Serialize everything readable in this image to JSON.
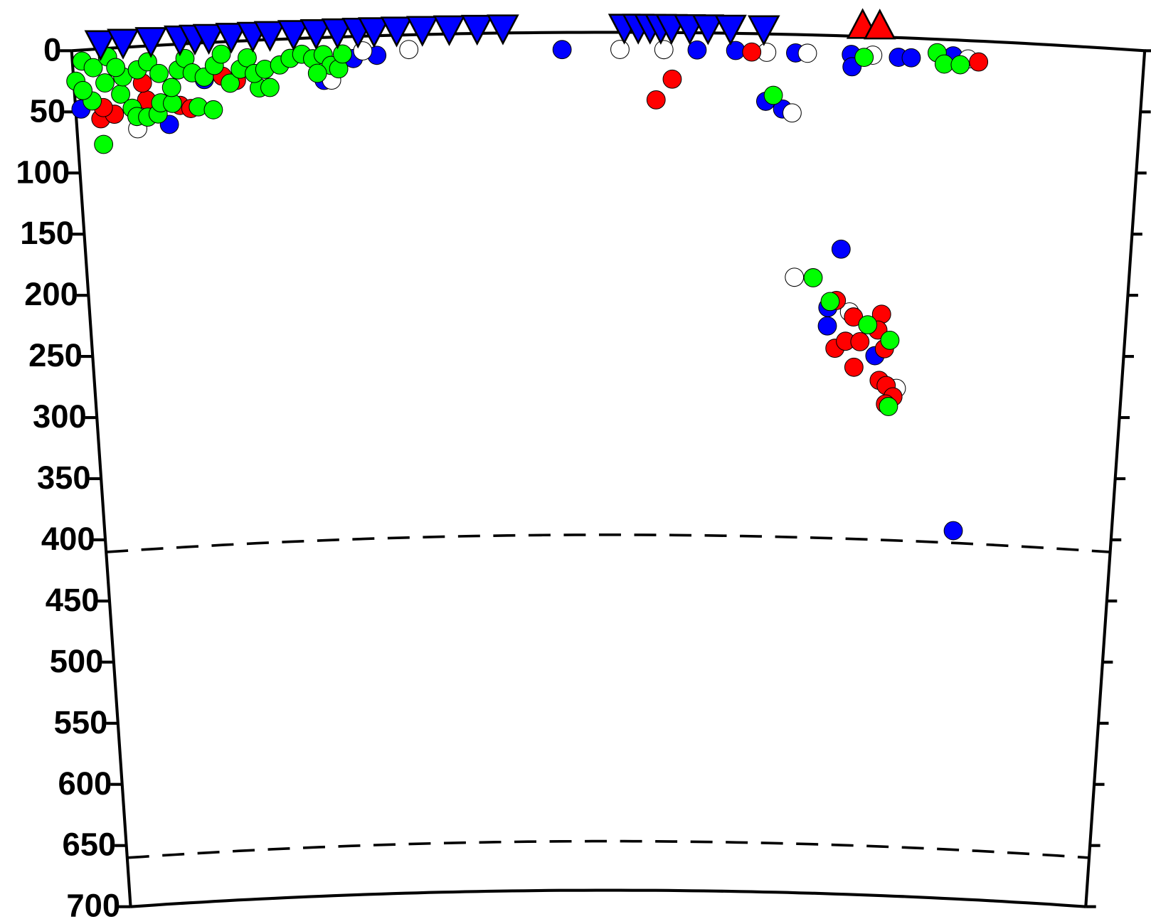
{
  "chart_data": {
    "type": "scatter",
    "y_inverted": true,
    "xlim": [
      0,
      100
    ],
    "ylim": [
      0,
      700
    ],
    "yticks": [
      0,
      50,
      100,
      150,
      200,
      250,
      300,
      350,
      400,
      450,
      500,
      550,
      600,
      650,
      700
    ],
    "ref_lines": [
      410,
      660
    ],
    "series": [
      {
        "color": "#0000ff",
        "x": [
          0.5,
          8.7,
          12.2,
          23.4,
          26.2,
          28.4,
          45.7,
          58.3,
          61.9,
          64.8,
          66.4,
          67.5,
          72.7,
          72.8,
          77.1,
          78.3,
          82.2,
          72.3,
          71.2,
          71.2,
          75.9,
          84.3
        ],
        "values": [
          48,
          65,
          30,
          35,
          18,
          16,
          14,
          14,
          14,
          55,
          61,
          15,
          15,
          25,
          16,
          16,
          13,
          174,
          237,
          222,
          260,
          400
        ]
      },
      {
        "color": "#ffffff",
        "x": [
          5.7,
          24.1,
          27.1,
          31.4,
          51.1,
          55.2,
          64.8,
          68.6,
          67.9,
          73.3,
          78.1,
          67.3,
          74.7,
          83.6
        ],
        "values": [
          67,
          35,
          12,
          12,
          14,
          14,
          15,
          15,
          198,
          225,
          286,
          64,
          15,
          15
        ]
      },
      {
        "color": "#ff0000",
        "x": [
          2.3,
          3.6,
          2.6,
          6.7,
          9.8,
          10.8,
          15.2,
          6.4,
          13.9,
          54.5,
          56.0,
          63.4,
          84.6,
          72.0,
          73.0,
          73.7,
          74.4,
          73.9,
          76.4,
          76.8,
          76.4,
          77.1,
          77.8,
          77.1,
          72.0,
          76.1
        ],
        "values": [
          57,
          54,
          48,
          44,
          50,
          53,
          32,
          30,
          28,
          55,
          38,
          15,
          17,
          255,
          249,
          229,
          249,
          270,
          226,
          254,
          280,
          284,
          293,
          299,
          216,
          239
        ]
      },
      {
        "color": "#00ff00",
        "x": [
          0.9,
          0.2,
          1.6,
          2.4,
          0.8,
          1.9,
          3.3,
          4.3,
          5.3,
          5.7,
          6.7,
          7.7,
          8.0,
          9.1,
          4.6,
          6.0,
          7.0,
          8.0,
          9.1,
          9.8,
          10.5,
          11.5,
          12.9,
          11.1,
          12.2,
          13.2,
          13.9,
          14.6,
          15.6,
          16.3,
          17.3,
          18.3,
          16.9,
          17.9,
          19.3,
          20.3,
          21.4,
          22.4,
          23.4,
          24.1,
          24.8,
          22.8,
          25.2,
          2.9,
          4.0,
          65.5,
          69.7,
          71.4,
          75.1,
          77.3,
          77.4,
          73.9,
          80.7,
          81.4,
          82.9
        ],
        "values": [
          9,
          25,
          42,
          78,
          33,
          15,
          7,
          38,
          50,
          57,
          58,
          56,
          47,
          48,
          24,
          19,
          13,
          23,
          35,
          21,
          12,
          52,
          55,
          24,
          28,
          19,
          10,
          34,
          23,
          14,
          39,
          39,
          27,
          24,
          21,
          16,
          13,
          17,
          14,
          23,
          26,
          29,
          14,
          28,
          16,
          50,
          198,
          217,
          235,
          247,
          301,
          17,
          11,
          20,
          20
        ]
      }
    ],
    "surface_markers": [
      {
        "marker": "triangle-down",
        "color": "#0000ff",
        "x": [
          2.7,
          4.8,
          7.4,
          10.1,
          11.5,
          12.8,
          14.9,
          16.9,
          18.5,
          20.7,
          22.8,
          24.8,
          26.7,
          28.2,
          30.3,
          32.7,
          35.2,
          37.8,
          40.2,
          51.5,
          52.8,
          53.9,
          54.9,
          55.9,
          57.6,
          59.3,
          61.4,
          64.5
        ]
      },
      {
        "marker": "triangle-up",
        "color": "#ff0000",
        "x": [
          73.7,
          75.3
        ]
      }
    ]
  }
}
